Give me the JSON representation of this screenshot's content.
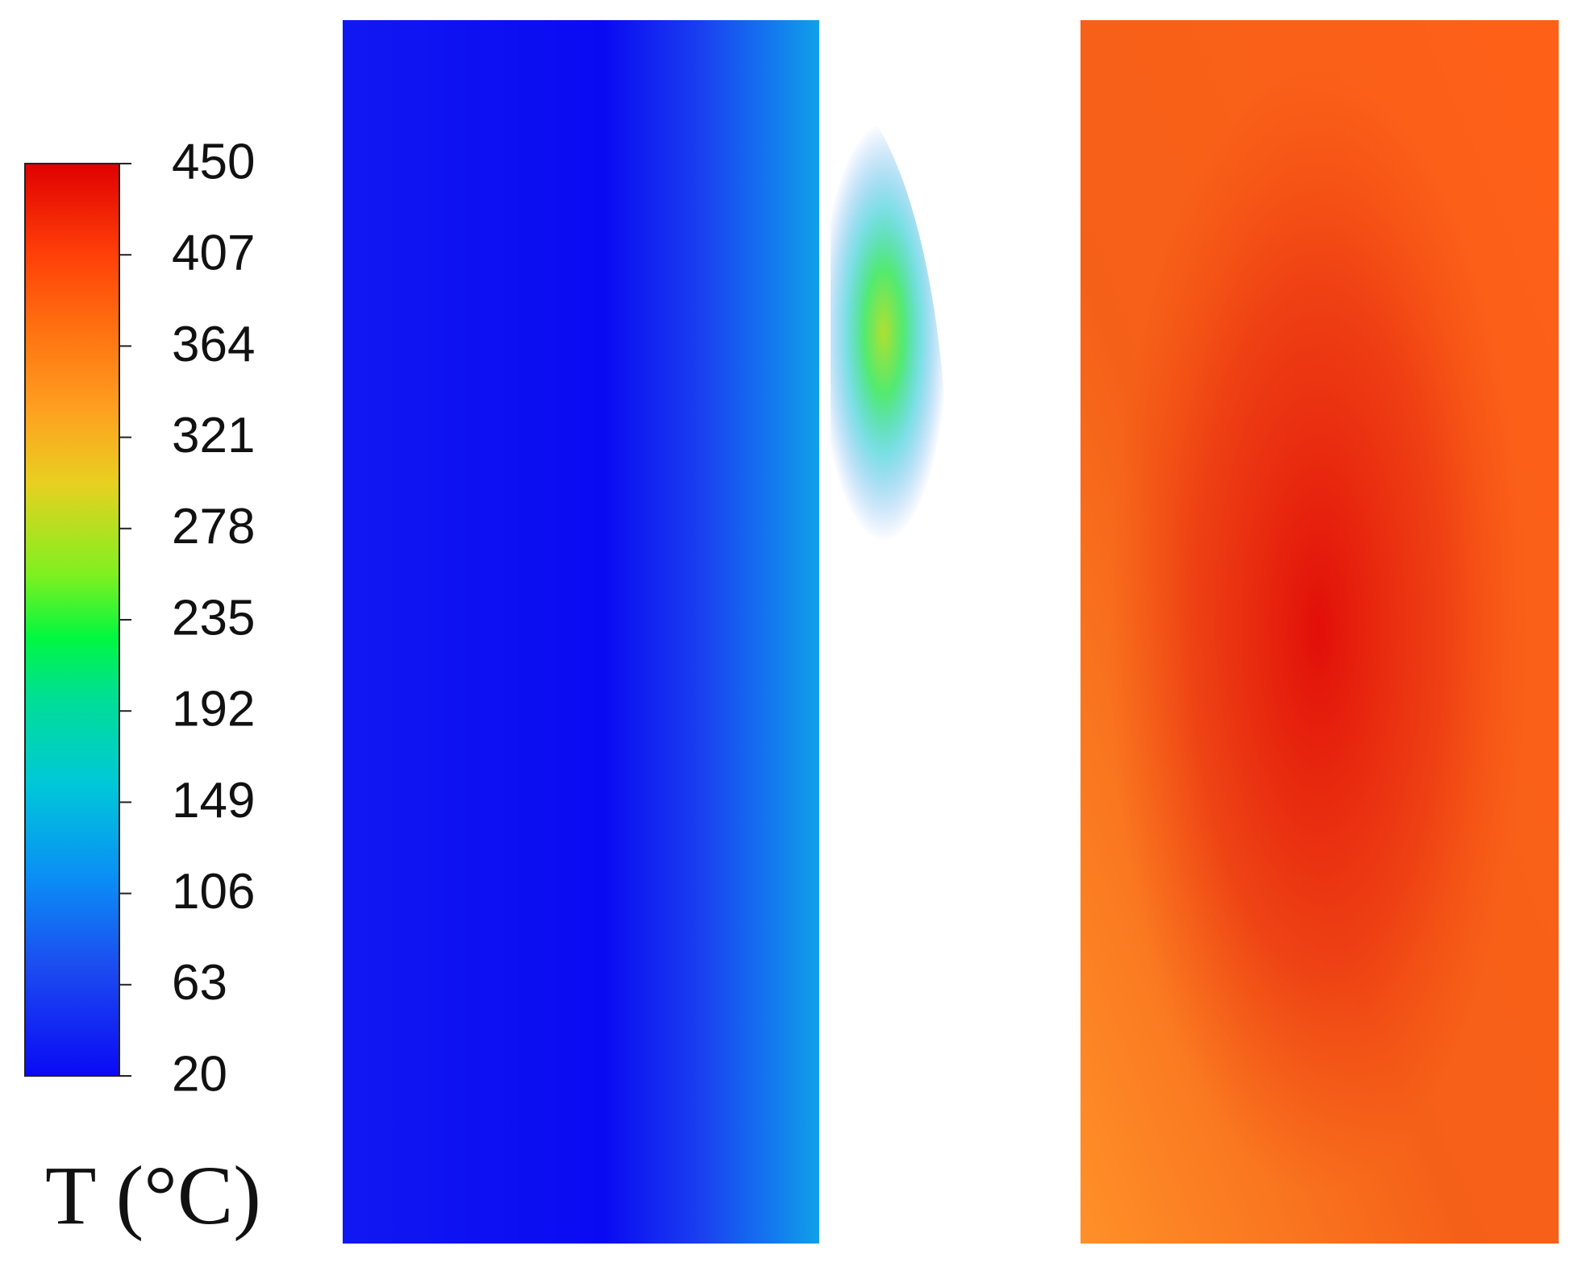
{
  "chart_data": {
    "type": "contour",
    "colorbar_label": "T (°C)",
    "clim": [
      20,
      450
    ],
    "yticks": [
      20,
      63,
      106,
      149,
      192,
      235,
      278,
      321,
      364,
      407,
      450
    ]
  }
}
